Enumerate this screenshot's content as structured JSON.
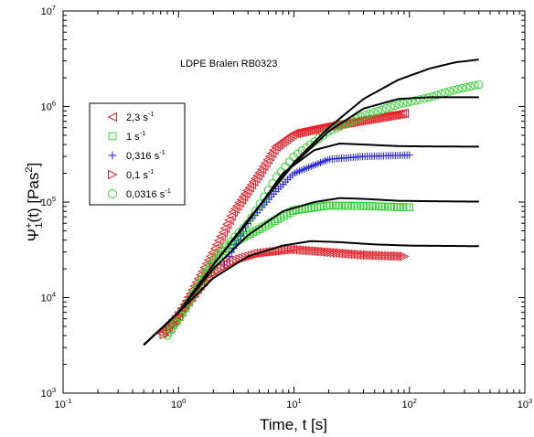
{
  "chart_data": {
    "type": "scatter",
    "title": "",
    "annotation": "LDPE Bralen RB0323",
    "xlabel": "Time, t [s]",
    "ylabel": {
      "symbol": "Ψ",
      "sup": "+",
      "sub": "1",
      "rest": "(t) [Pas",
      "unit_sup": "2",
      "close": "]"
    },
    "x_scale": "log",
    "y_scale": "log",
    "xlim": [
      0.1,
      1000
    ],
    "ylim": [
      1000,
      10000000
    ],
    "x_ticks": [
      {
        "value": 0.1,
        "base": "10",
        "exp": "-1"
      },
      {
        "value": 1,
        "base": "10",
        "exp": "0"
      },
      {
        "value": 10,
        "base": "10",
        "exp": "1"
      },
      {
        "value": 100,
        "base": "10",
        "exp": "2"
      },
      {
        "value": 1000,
        "base": "10",
        "exp": "3"
      }
    ],
    "y_ticks": [
      {
        "value": 1000,
        "base": "10",
        "exp": "3"
      },
      {
        "value": 10000,
        "base": "10",
        "exp": "4"
      },
      {
        "value": 100000,
        "base": "10",
        "exp": "5"
      },
      {
        "value": 1000000,
        "base": "10",
        "exp": "6"
      },
      {
        "value": 10000000,
        "base": "10",
        "exp": "7"
      }
    ],
    "grid": false,
    "legend_position": "upper-left",
    "series": [
      {
        "label": "2,3 s",
        "label_sup": "-1",
        "marker": "triangle-left",
        "color": "#e8202a",
        "t_start": 0.72,
        "t_end": 90,
        "count": 120,
        "points": [
          [
            0.72,
            4200
          ],
          [
            1,
            6500
          ],
          [
            2,
            30000
          ],
          [
            3,
            80000
          ],
          [
            5,
            200000
          ],
          [
            7,
            380000
          ],
          [
            10,
            520000
          ],
          [
            20,
            620000
          ],
          [
            40,
            720000
          ],
          [
            90,
            850000
          ]
        ]
      },
      {
        "label": "1 s",
        "label_sup": "-1",
        "marker": "square",
        "color": "#2fd52f",
        "t_start": 0.8,
        "t_end": 100,
        "count": 80,
        "points": [
          [
            0.8,
            4300
          ],
          [
            1,
            6000
          ],
          [
            2,
            22000
          ],
          [
            3,
            38000
          ],
          [
            5,
            52000
          ],
          [
            10,
            82000
          ],
          [
            20,
            92000
          ],
          [
            40,
            91000
          ],
          [
            100,
            88000
          ]
        ]
      },
      {
        "label": "0,316 s",
        "label_sup": "-1",
        "marker": "plus",
        "color": "#2020e0",
        "t_start": 2.5,
        "t_end": 100,
        "count": 80,
        "points": [
          [
            2.5,
            22000
          ],
          [
            4,
            60000
          ],
          [
            7,
            130000
          ],
          [
            10,
            200000
          ],
          [
            20,
            280000
          ],
          [
            40,
            300000
          ],
          [
            100,
            310000
          ]
        ]
      },
      {
        "label": "0,1 s",
        "label_sup": "-1",
        "marker": "triangle-right",
        "color": "#e8202a",
        "t_start": 0.75,
        "t_end": 90,
        "count": 80,
        "points": [
          [
            0.75,
            4100
          ],
          [
            1,
            6300
          ],
          [
            2,
            18000
          ],
          [
            3,
            24000
          ],
          [
            5,
            29000
          ],
          [
            10,
            32000
          ],
          [
            20,
            30000
          ],
          [
            40,
            28000
          ],
          [
            90,
            27000
          ]
        ]
      },
      {
        "label": "0,0316 s",
        "label_sup": "-1",
        "marker": "circle",
        "color": "#2fd52f",
        "t_start": 0.8,
        "t_end": 400,
        "count": 75,
        "points": [
          [
            0.8,
            4000
          ],
          [
            1,
            6000
          ],
          [
            2,
            25000
          ],
          [
            4,
            60000
          ],
          [
            7,
            180000
          ],
          [
            10,
            300000
          ],
          [
            20,
            550000
          ],
          [
            40,
            800000
          ],
          [
            80,
            1050000
          ],
          [
            150,
            1250000
          ],
          [
            250,
            1500000
          ],
          [
            400,
            1700000
          ]
        ]
      }
    ],
    "model_curves": [
      {
        "color": "#000000",
        "points": [
          [
            0.5,
            3200
          ],
          [
            1,
            7000
          ],
          [
            2,
            22000
          ],
          [
            4,
            65000
          ],
          [
            10,
            260000
          ],
          [
            20,
            600000
          ],
          [
            40,
            1200000
          ],
          [
            80,
            1900000
          ],
          [
            150,
            2500000
          ],
          [
            250,
            2900000
          ],
          [
            400,
            3100000
          ]
        ]
      },
      {
        "color": "#000000",
        "points": [
          [
            0.5,
            3200
          ],
          [
            1,
            7000
          ],
          [
            2,
            22000
          ],
          [
            4,
            65000
          ],
          [
            10,
            250000
          ],
          [
            20,
            550000
          ],
          [
            40,
            950000
          ],
          [
            80,
            1200000
          ],
          [
            150,
            1250000
          ],
          [
            250,
            1250000
          ],
          [
            400,
            1250000
          ]
        ]
      },
      {
        "color": "#000000",
        "points": [
          [
            0.5,
            3200
          ],
          [
            1,
            7000
          ],
          [
            2,
            22000
          ],
          [
            4,
            62000
          ],
          [
            8,
            200000
          ],
          [
            15,
            350000
          ],
          [
            25,
            410000
          ],
          [
            40,
            400000
          ],
          [
            80,
            385000
          ],
          [
            150,
            382000
          ],
          [
            400,
            380000
          ]
        ]
      },
      {
        "color": "#000000",
        "points": [
          [
            0.5,
            3200
          ],
          [
            1,
            7000
          ],
          [
            2,
            20000
          ],
          [
            4,
            45000
          ],
          [
            8,
            80000
          ],
          [
            15,
            100000
          ],
          [
            25,
            110000
          ],
          [
            40,
            108000
          ],
          [
            80,
            103000
          ],
          [
            150,
            102000
          ],
          [
            400,
            101000
          ]
        ]
      },
      {
        "color": "#000000",
        "points": [
          [
            0.5,
            3200
          ],
          [
            1,
            7000
          ],
          [
            2,
            16000
          ],
          [
            4,
            27000
          ],
          [
            8,
            35000
          ],
          [
            14,
            39000
          ],
          [
            25,
            38000
          ],
          [
            50,
            36000
          ],
          [
            100,
            35000
          ],
          [
            400,
            34500
          ]
        ]
      }
    ]
  }
}
